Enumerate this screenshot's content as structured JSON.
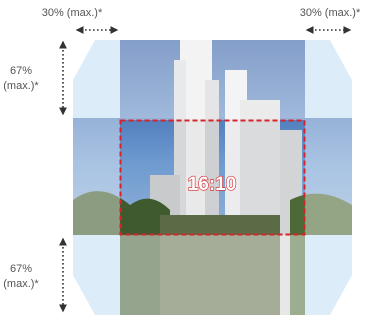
{
  "width_labels": [
    "30% (max.)*",
    "30% (max.)*"
  ],
  "height_labels": [
    [
      "67%",
      "(max.)*"
    ],
    [
      "67%",
      "(max.)*"
    ]
  ],
  "ratio_label": "16:10"
}
